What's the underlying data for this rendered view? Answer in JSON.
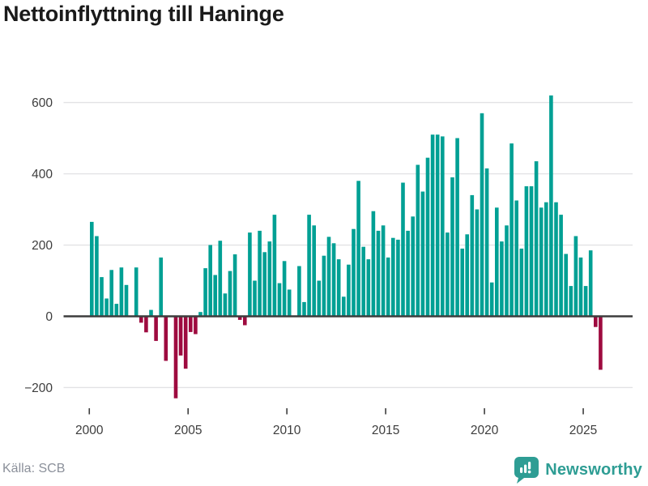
{
  "title": "Nettoinflyttning till Haninge",
  "source": {
    "text": "Källa: SCB"
  },
  "branding": {
    "logo_text": "Newsworthy",
    "logo_icon": "bar-chart-speech-bubble-icon",
    "brand_color": "#2e9d94"
  },
  "chart_data": {
    "type": "bar",
    "title": "Nettoinflyttning till Haninge",
    "xlabel": "",
    "ylabel": "",
    "frequency": "quarterly",
    "start_year": 2000,
    "quarters_per_year": 4,
    "values": [
      265,
      225,
      110,
      50,
      130,
      35,
      137,
      88,
      0,
      137,
      -18,
      -45,
      18,
      -69,
      165,
      -125,
      0,
      -230,
      -110,
      -147,
      -44,
      -50,
      12,
      135,
      200,
      116,
      212,
      64,
      127,
      174,
      -10,
      -25,
      235,
      100,
      240,
      180,
      210,
      285,
      93,
      155,
      75,
      0,
      141,
      40,
      285,
      255,
      100,
      170,
      223,
      205,
      160,
      55,
      145,
      245,
      380,
      195,
      160,
      295,
      240,
      255,
      165,
      220,
      215,
      375,
      240,
      280,
      425,
      350,
      445,
      510,
      510,
      505,
      235,
      390,
      500,
      190,
      230,
      340,
      300,
      570,
      415,
      95,
      305,
      210,
      255,
      485,
      325,
      190,
      365,
      365,
      435,
      305,
      320,
      620,
      320,
      285,
      175,
      85,
      225,
      165,
      85,
      185,
      -30,
      -150
    ],
    "yticks": [
      -200,
      0,
      200,
      400,
      600
    ],
    "xticks": [
      2000,
      2005,
      2010,
      2015,
      2020,
      2025
    ],
    "ylim": [
      -250,
      650
    ],
    "grid": true,
    "legend": false,
    "colors": {
      "positive": "#00a094",
      "negative": "#9e0b3f",
      "gridline": "#e2e2e5",
      "zero_line": "#3d3d3d",
      "tick_text": "#3d3d3d"
    }
  }
}
